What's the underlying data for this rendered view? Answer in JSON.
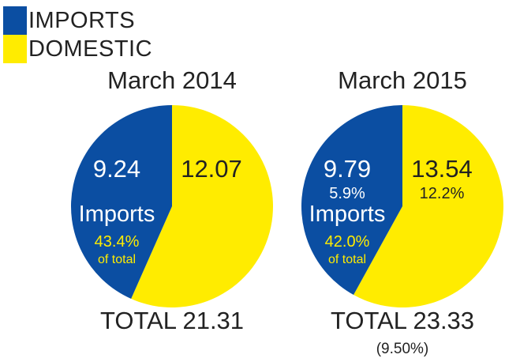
{
  "colors": {
    "imports": "#0b4ea2",
    "domestic": "#ffec00",
    "label_white": "#ffffff",
    "label_dark": "#222222",
    "label_yellow": "#ffec00"
  },
  "legend": [
    {
      "label": "IMPORTS",
      "color": "#0b4ea2"
    },
    {
      "label": "DOMESTIC",
      "color": "#ffec00"
    }
  ],
  "chart_data": [
    {
      "type": "pie",
      "title": "March 2014",
      "slices": [
        {
          "name": "IMPORTS",
          "value": 9.24
        },
        {
          "name": "DOMESTIC",
          "value": 12.07
        }
      ],
      "labels": {
        "imports_value": "9.24",
        "imports_growth": "",
        "imports_word": "Imports",
        "imports_share": "43.4%",
        "imports_share_note": "of total",
        "domestic_value": "12.07",
        "domestic_growth": ""
      },
      "total_label": "TOTAL 21.31",
      "total_note": ""
    },
    {
      "type": "pie",
      "title": "March 2015",
      "slices": [
        {
          "name": "IMPORTS",
          "value": 9.79
        },
        {
          "name": "DOMESTIC",
          "value": 13.54
        }
      ],
      "labels": {
        "imports_value": "9.79",
        "imports_growth": "5.9%",
        "imports_word": "Imports",
        "imports_share": "42.0%",
        "imports_share_note": "of total",
        "domestic_value": "13.54",
        "domestic_growth": "12.2%"
      },
      "total_label": "TOTAL 23.33",
      "total_note": "(9.50%)"
    }
  ]
}
